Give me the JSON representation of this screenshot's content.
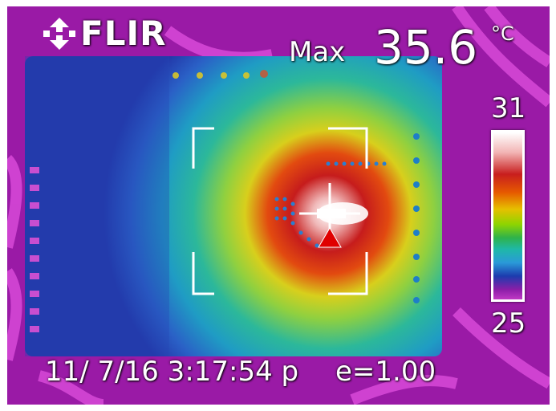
{
  "brand": {
    "name": "FLIR"
  },
  "measurement": {
    "label": "Max",
    "value": "35.6",
    "unit": "°C"
  },
  "scale": {
    "high": "31",
    "low": "25",
    "palette": [
      "#ffffff",
      "#f3b6b6",
      "#c81e1e",
      "#e65a00",
      "#e6b400",
      "#9fd400",
      "#2fb24a",
      "#1fb8a8",
      "#2a9ad8",
      "#1c3cae",
      "#8a1ea8",
      "#c038c4"
    ]
  },
  "status": {
    "datetime": "11/ 7/16 3:17:54 p",
    "emissivity": "e=1.00"
  }
}
